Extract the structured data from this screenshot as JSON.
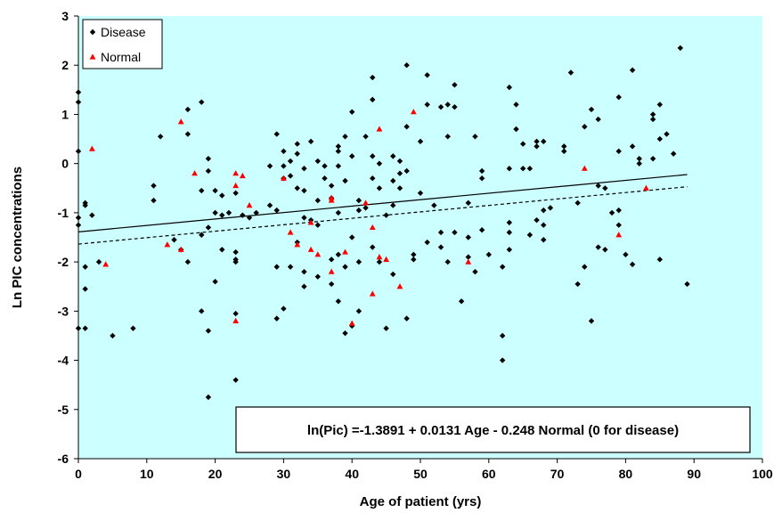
{
  "chart_data": {
    "type": "scatter",
    "title": "",
    "xlabel": "Age of patient (yrs)",
    "ylabel": "Ln PIC concentrations",
    "xlim": [
      0,
      100
    ],
    "ylim": [
      -6,
      3
    ],
    "x_ticks": [
      0,
      10,
      20,
      30,
      40,
      50,
      60,
      70,
      80,
      90,
      100
    ],
    "y_ticks": [
      -6,
      -5,
      -4,
      -3,
      -2,
      -1,
      0,
      1,
      2,
      3
    ],
    "grid": false,
    "legend_position": "top-left",
    "colors": {
      "plot_background": "#ccffff",
      "disease_marker": "#000000",
      "normal_marker": "#ff0000",
      "axis": "#000000"
    },
    "annotation": "ln(Pic) =-1.3891 + 0.0131 Age - 0.248 Normal (0 for disease)",
    "fit_lines": [
      {
        "group": "Disease",
        "intercept": -1.3891,
        "slope": 0.0131,
        "x_range": [
          0,
          89
        ],
        "style": "solid"
      },
      {
        "group": "Normal",
        "intercept": -1.6371,
        "slope": 0.0131,
        "x_range": [
          0,
          89
        ],
        "style": "dashed"
      }
    ],
    "series": [
      {
        "name": "Disease",
        "marker": "diamond",
        "points": [
          [
            0,
            -1.1
          ],
          [
            0,
            -1.25
          ],
          [
            0,
            -3.35
          ],
          [
            0,
            0.25
          ],
          [
            0,
            1.45
          ],
          [
            0,
            1.25
          ],
          [
            1,
            -0.85
          ],
          [
            1,
            -0.8
          ],
          [
            1,
            -2.55
          ],
          [
            1,
            -2.1
          ],
          [
            1,
            -3.35
          ],
          [
            2,
            -1.05
          ],
          [
            3,
            -2.0
          ],
          [
            5,
            -3.5
          ],
          [
            8,
            -3.35
          ],
          [
            11,
            -0.45
          ],
          [
            11,
            -0.75
          ],
          [
            12,
            0.55
          ],
          [
            14,
            -1.55
          ],
          [
            15,
            -1.75
          ],
          [
            16,
            1.1
          ],
          [
            16,
            0.6
          ],
          [
            16,
            -2.0
          ],
          [
            18,
            1.25
          ],
          [
            18,
            -0.55
          ],
          [
            18,
            -1.45
          ],
          [
            18,
            -3.0
          ],
          [
            19,
            0.1
          ],
          [
            19,
            -0.15
          ],
          [
            19,
            -1.3
          ],
          [
            19,
            -3.4
          ],
          [
            19,
            -4.75
          ],
          [
            20,
            -1.0
          ],
          [
            20,
            -0.55
          ],
          [
            20,
            -2.4
          ],
          [
            21,
            -1.05
          ],
          [
            21,
            -0.65
          ],
          [
            21,
            -1.75
          ],
          [
            22,
            -1.0
          ],
          [
            23,
            -0.6
          ],
          [
            23,
            -1.8
          ],
          [
            23,
            -1.95
          ],
          [
            23,
            -2.0
          ],
          [
            23,
            -3.05
          ],
          [
            23,
            -4.4
          ],
          [
            24,
            -1.05
          ],
          [
            25,
            -1.1
          ],
          [
            26,
            -1.0
          ],
          [
            28,
            -0.85
          ],
          [
            28,
            -0.05
          ],
          [
            29,
            0.6
          ],
          [
            29,
            -0.95
          ],
          [
            29,
            -2.1
          ],
          [
            29,
            -3.15
          ],
          [
            30,
            0.25
          ],
          [
            30,
            -0.3
          ],
          [
            30,
            -2.95
          ],
          [
            30,
            -0.05
          ],
          [
            31,
            0.05
          ],
          [
            31,
            -2.1
          ],
          [
            31,
            -0.25
          ],
          [
            32,
            0.4
          ],
          [
            32,
            0.2
          ],
          [
            32,
            -0.5
          ],
          [
            32,
            -1.6
          ],
          [
            33,
            -0.1
          ],
          [
            33,
            -0.55
          ],
          [
            33,
            -1.1
          ],
          [
            33,
            -2.2
          ],
          [
            33,
            -2.5
          ],
          [
            34,
            0.45
          ],
          [
            34,
            -1.15
          ],
          [
            35,
            0.05
          ],
          [
            35,
            -0.75
          ],
          [
            35,
            -1.25
          ],
          [
            35,
            -2.3
          ],
          [
            36,
            -0.05
          ],
          [
            36,
            -0.3
          ],
          [
            37,
            -0.7
          ],
          [
            37,
            -0.45
          ],
          [
            37,
            -1.95
          ],
          [
            37,
            -2.45
          ],
          [
            38,
            0.35
          ],
          [
            38,
            0.25
          ],
          [
            38,
            -0.05
          ],
          [
            38,
            -1.0
          ],
          [
            38,
            -2.8
          ],
          [
            38,
            -1.85
          ],
          [
            39,
            0.55
          ],
          [
            39,
            -0.35
          ],
          [
            39,
            -2.1
          ],
          [
            39,
            -3.45
          ],
          [
            40,
            1.05
          ],
          [
            40,
            0.15
          ],
          [
            40,
            -1.5
          ],
          [
            40,
            -3.3
          ],
          [
            41,
            -0.95
          ],
          [
            41,
            -0.75
          ],
          [
            41,
            -2.0
          ],
          [
            41,
            -3.0
          ],
          [
            42,
            0.55
          ],
          [
            42,
            -0.9
          ],
          [
            43,
            1.75
          ],
          [
            43,
            1.3
          ],
          [
            43,
            0.15
          ],
          [
            43,
            -0.3
          ],
          [
            43,
            -1.7
          ],
          [
            44,
            0.0
          ],
          [
            44,
            -0.5
          ],
          [
            44,
            -2.0
          ],
          [
            45,
            -1.05
          ],
          [
            45,
            -3.35
          ],
          [
            46,
            0.15
          ],
          [
            46,
            -0.35
          ],
          [
            46,
            -0.85
          ],
          [
            46,
            -2.25
          ],
          [
            47,
            0.05
          ],
          [
            47,
            -0.2
          ],
          [
            47,
            -0.5
          ],
          [
            48,
            2.0
          ],
          [
            48,
            0.75
          ],
          [
            48,
            -0.15
          ],
          [
            48,
            -3.15
          ],
          [
            49,
            -1.85
          ],
          [
            49,
            -1.95
          ],
          [
            50,
            0.45
          ],
          [
            50,
            -0.6
          ],
          [
            51,
            1.8
          ],
          [
            51,
            1.2
          ],
          [
            51,
            -1.6
          ],
          [
            52,
            -0.85
          ],
          [
            53,
            1.15
          ],
          [
            53,
            -1.4
          ],
          [
            53,
            -1.7
          ],
          [
            54,
            1.2
          ],
          [
            54,
            0.55
          ],
          [
            54,
            -2.0
          ],
          [
            55,
            1.6
          ],
          [
            55,
            1.15
          ],
          [
            55,
            -1.4
          ],
          [
            56,
            -2.8
          ],
          [
            57,
            -0.8
          ],
          [
            57,
            -1.5
          ],
          [
            57,
            -1.9
          ],
          [
            58,
            0.55
          ],
          [
            58,
            -2.2
          ],
          [
            59,
            -0.15
          ],
          [
            59,
            -0.3
          ],
          [
            59,
            -1.35
          ],
          [
            60,
            -1.85
          ],
          [
            62,
            -2.1
          ],
          [
            62,
            -3.5
          ],
          [
            62,
            -4.0
          ],
          [
            63,
            1.55
          ],
          [
            63,
            -0.1
          ],
          [
            63,
            -1.2
          ],
          [
            63,
            -1.4
          ],
          [
            63,
            -1.75
          ],
          [
            64,
            1.2
          ],
          [
            64,
            0.7
          ],
          [
            65,
            0.4
          ],
          [
            65,
            -0.1
          ],
          [
            66,
            -0.1
          ],
          [
            66,
            -1.45
          ],
          [
            67,
            0.45
          ],
          [
            67,
            0.35
          ],
          [
            67,
            -1.15
          ],
          [
            68,
            0.45
          ],
          [
            68,
            -0.95
          ],
          [
            68,
            -1.25
          ],
          [
            68,
            -1.55
          ],
          [
            69,
            -0.9
          ],
          [
            71,
            0.35
          ],
          [
            71,
            0.25
          ],
          [
            72,
            1.85
          ],
          [
            73,
            -2.45
          ],
          [
            73,
            -0.8
          ],
          [
            74,
            -2.1
          ],
          [
            74,
            0.75
          ],
          [
            75,
            1.1
          ],
          [
            75,
            -3.2
          ],
          [
            76,
            0.9
          ],
          [
            76,
            -0.45
          ],
          [
            76,
            -1.7
          ],
          [
            77,
            -0.5
          ],
          [
            77,
            -1.75
          ],
          [
            78,
            -1.0
          ],
          [
            79,
            1.35
          ],
          [
            79,
            0.25
          ],
          [
            79,
            -0.95
          ],
          [
            79,
            -1.25
          ],
          [
            80,
            -1.85
          ],
          [
            81,
            1.9
          ],
          [
            81,
            0.35
          ],
          [
            81,
            -2.05
          ],
          [
            82,
            0.0
          ],
          [
            82,
            0.1
          ],
          [
            84,
            1.0
          ],
          [
            84,
            0.9
          ],
          [
            84,
            0.1
          ],
          [
            85,
            1.2
          ],
          [
            85,
            0.5
          ],
          [
            85,
            -1.95
          ],
          [
            86,
            0.6
          ],
          [
            87,
            0.2
          ],
          [
            88,
            2.35
          ],
          [
            89,
            -2.45
          ]
        ]
      },
      {
        "name": "Normal",
        "marker": "triangle",
        "points": [
          [
            2,
            0.3
          ],
          [
            4,
            -2.05
          ],
          [
            13,
            -1.65
          ],
          [
            15,
            0.85
          ],
          [
            15,
            -1.75
          ],
          [
            17,
            -0.2
          ],
          [
            23,
            -0.2
          ],
          [
            23,
            -0.45
          ],
          [
            23,
            -3.2
          ],
          [
            24,
            -0.25
          ],
          [
            25,
            -0.85
          ],
          [
            30,
            -0.3
          ],
          [
            31,
            -1.4
          ],
          [
            32,
            -1.65
          ],
          [
            34,
            -1.2
          ],
          [
            34,
            -1.75
          ],
          [
            35,
            -1.85
          ],
          [
            37,
            -0.7
          ],
          [
            37,
            -0.75
          ],
          [
            37,
            -2.2
          ],
          [
            39,
            -1.8
          ],
          [
            40,
            -3.25
          ],
          [
            42,
            -0.8
          ],
          [
            43,
            -1.3
          ],
          [
            43,
            -2.65
          ],
          [
            44,
            0.7
          ],
          [
            44,
            -1.9
          ],
          [
            45,
            -1.95
          ],
          [
            47,
            -2.5
          ],
          [
            49,
            1.05
          ],
          [
            57,
            -2.0
          ],
          [
            74,
            -0.1
          ],
          [
            79,
            -1.45
          ],
          [
            83,
            -0.5
          ]
        ]
      }
    ]
  }
}
